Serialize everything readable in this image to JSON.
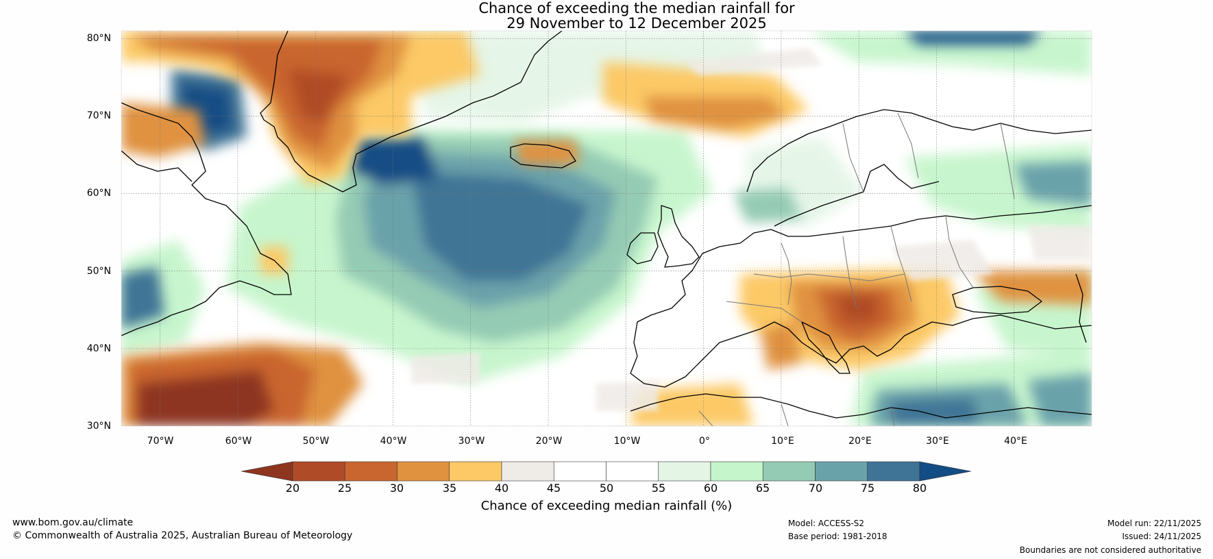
{
  "title": {
    "line1": "Chance of exceeding the median rainfall for",
    "line2": "29 November to 12 December 2025"
  },
  "map": {
    "lon_range": [
      -75,
      50
    ],
    "lat_range": [
      30,
      81
    ],
    "lat_ticks": [
      {
        "value": 80,
        "label": "80°N"
      },
      {
        "value": 70,
        "label": "70°N"
      },
      {
        "value": 60,
        "label": "60°N"
      },
      {
        "value": 50,
        "label": "50°N"
      },
      {
        "value": 40,
        "label": "40°N"
      },
      {
        "value": 30,
        "label": "30°N"
      }
    ],
    "lon_ticks": [
      {
        "value": -70,
        "label": "70°W"
      },
      {
        "value": -60,
        "label": "60°W"
      },
      {
        "value": -50,
        "label": "50°W"
      },
      {
        "value": -40,
        "label": "40°W"
      },
      {
        "value": -30,
        "label": "30°W"
      },
      {
        "value": -20,
        "label": "20°W"
      },
      {
        "value": -10,
        "label": "10°W"
      },
      {
        "value": 0,
        "label": "0°"
      },
      {
        "value": 10,
        "label": "10°E"
      },
      {
        "value": 20,
        "label": "20°E"
      },
      {
        "value": 30,
        "label": "30°E"
      },
      {
        "value": 40,
        "label": "40°E"
      }
    ]
  },
  "colorbar": {
    "ticks": [
      "20",
      "25",
      "30",
      "35",
      "40",
      "45",
      "50",
      "55",
      "60",
      "65",
      "70",
      "75",
      "80"
    ],
    "colors": [
      "#8e3520",
      "#b04b27",
      "#c9652f",
      "#e0923f",
      "#fcc966",
      "#efebe7",
      "#ffffff",
      "#ffffff",
      "#e4f5e6",
      "#c5f5cb",
      "#94cbb4",
      "#6aa2aa",
      "#3f7496",
      "#134d85"
    ],
    "caption": "Chance of exceeding median rainfall (%)"
  },
  "footer": {
    "website": "www.bom.gov.au/climate",
    "copyright": "© Commonwealth of Australia 2025, Australian Bureau of Meteorology",
    "model": "Model: ACCESS-S2",
    "base_period": "Base period: 1981-2018",
    "model_run": "Model run: 22/11/2025",
    "issued": "Issued: 24/11/2025",
    "disclaimer": "Boundaries are not considered authoritative"
  }
}
